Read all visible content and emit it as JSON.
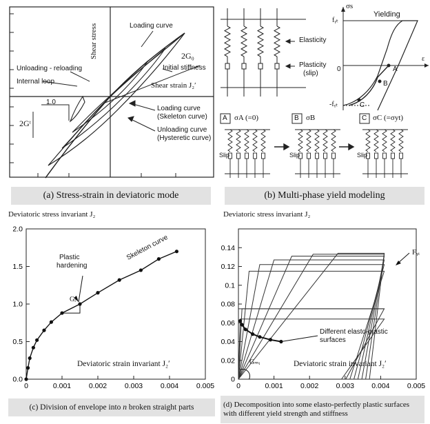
{
  "panel_a": {
    "caption": "(a) Stress-strain in deviatoric mode",
    "labels": {
      "loading_curve": "Loading curve",
      "two_g0": "2G₀",
      "initial_stiffness": "Initial stiffness",
      "unloading_reloading": "Unloading - reloading",
      "internal_loop": "Internal loop",
      "shear_stress": "Shear stress",
      "shear_strain": "Shear strain J₂ʹ",
      "skeleton_1": "Loading curve",
      "skeleton_2": "(Skeleton curve)",
      "hysteretic_1": "Unloading curve",
      "hysteretic_2": "(Hysteretic curve)",
      "slope_val": "1.0",
      "two_gt": "2Gᵗ"
    }
  },
  "panel_b": {
    "caption": "(b) Multi-phase yield modeling",
    "labels": {
      "elasticity": "Elasticity",
      "plasticity": "Plasticity",
      "slip": "(slip)",
      "yielding": "Yielding",
      "sigma_s": "σs",
      "fyt": "fᵧₜ",
      "neg_fyt": "-fᵧₜ",
      "zero": "0",
      "eps": "ε",
      "pt_a": "A",
      "pt_b": "B",
      "pt_c": "C",
      "box_a": "A",
      "box_b": "B",
      "box_c": "C",
      "state_a": "σA (=0)",
      "state_b": "σB",
      "state_c": "σC (=σyt)",
      "slip_label": "Slip"
    }
  },
  "panel_c": {
    "caption_prefix": "(c) Division of envelope into ",
    "caption_n": "n",
    "caption_suffix": " broken straight parts",
    "y_title": "Deviatoric stress invariant J₂",
    "x_title": "Deviatoric strain invariant J₂ʹ",
    "annotations": {
      "plastic": "Plastic",
      "hardening": "hardening",
      "skeleton": "Skeleton curve",
      "gi": "Gᵢ"
    }
  },
  "panel_d": {
    "caption": "(d) Decomposition into some elasto-perfectly plastic surfaces with different yield strength and stiffness",
    "y_title": "Deviatoric stress invariant J₂",
    "x_title": "Deviatoric strain invariant J₂ʹ",
    "annotations": {
      "fy": "Fᵧᵢ",
      "diff_1": "Different elasto-plastic",
      "diff_2": "surfaces",
      "gmi": "Gₘᵢ"
    }
  },
  "chart_data": [
    {
      "type": "line",
      "panel": "c",
      "x_ticks": [
        "0",
        "0.001",
        "0.002",
        "0.003",
        "0.004",
        "0.005"
      ],
      "y_ticks": [
        "0.0",
        "0.5",
        "1.0",
        "1.5",
        "2.0"
      ],
      "xlim": [
        0,
        0.005
      ],
      "ylim": [
        0,
        2.0
      ],
      "series": [
        {
          "x": [
            0,
            5e-05,
            0.0001,
            0.0002,
            0.0003,
            0.0005,
            0.0007,
            0.001,
            0.0015,
            0.002,
            0.0026,
            0.0032,
            0.0037,
            0.0042
          ],
          "y": [
            0,
            0.15,
            0.28,
            0.42,
            0.52,
            0.65,
            0.76,
            0.88,
            1.0,
            1.15,
            1.32,
            1.45,
            1.6,
            1.7
          ]
        }
      ]
    },
    {
      "type": "line",
      "panel": "d",
      "x_ticks": [
        "0",
        "0.001",
        "0.002",
        "0.003",
        "0.004",
        "0.005"
      ],
      "y_ticks": [
        "0",
        "0.02",
        "0.04",
        "0.06",
        "0.08",
        "0.1",
        "0.12",
        "0.14"
      ],
      "xlim": [
        0,
        0.005
      ],
      "ylim": [
        0,
        0.16
      ],
      "surfaces": [
        {
          "yield": 0.064,
          "yield_strain": 5e-05
        },
        {
          "yield": 0.075,
          "yield_strain": 0.0001
        },
        {
          "yield": 0.115,
          "yield_strain": 0.0003
        },
        {
          "yield": 0.122,
          "yield_strain": 0.0006
        },
        {
          "yield": 0.127,
          "yield_strain": 0.001
        },
        {
          "yield": 0.131,
          "yield_strain": 0.0015
        },
        {
          "yield": 0.133,
          "yield_strain": 0.0021
        },
        {
          "yield": 0.134,
          "yield_strain": 0.0028
        }
      ],
      "envelope_points": {
        "x": [
          5e-05,
          0.0001,
          0.0002,
          0.0004,
          0.0006,
          0.0009,
          0.0012
        ],
        "y": [
          0.062,
          0.058,
          0.053,
          0.048,
          0.045,
          0.042,
          0.04
        ]
      }
    }
  ]
}
